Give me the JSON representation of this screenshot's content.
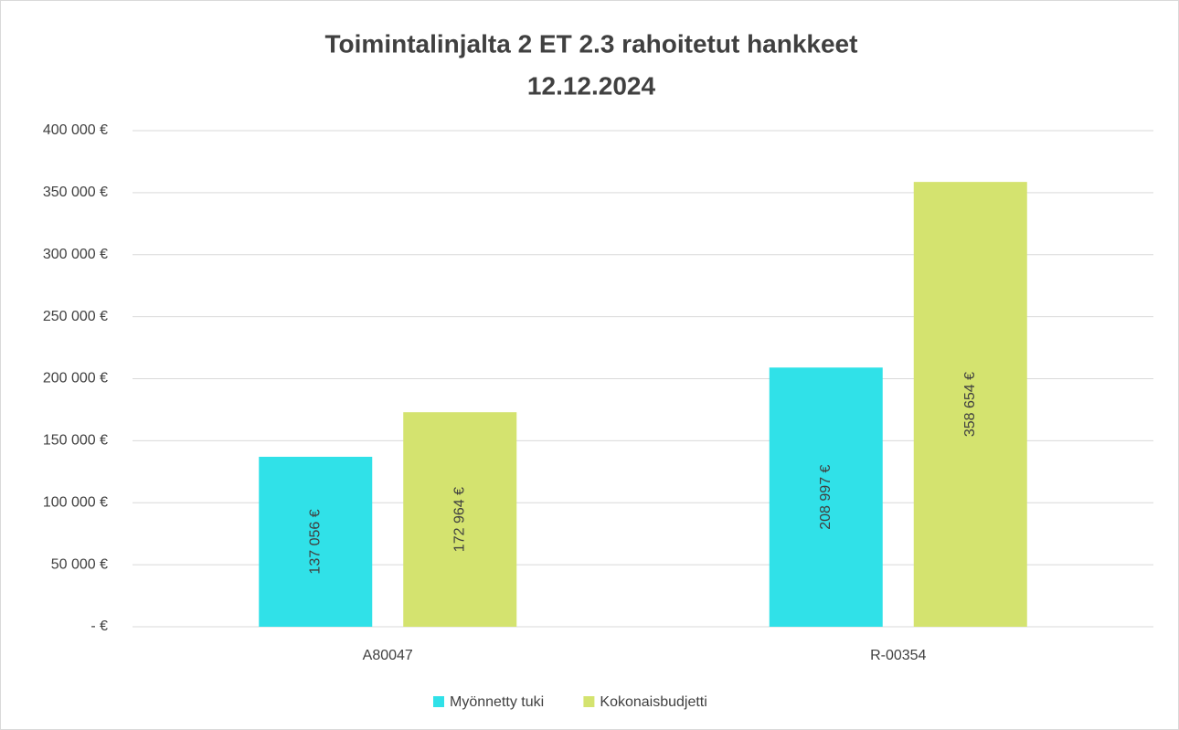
{
  "chart_data": {
    "type": "bar",
    "title": "Toimintalinjalta 2 ET 2.3 rahoitetut hankkeet",
    "subtitle": "12.12.2024",
    "categories": [
      "A80047",
      "R-00354"
    ],
    "series": [
      {
        "name": "Myönnetty tuki",
        "color": "#30e1e8",
        "values": [
          137056,
          208997
        ],
        "value_labels": [
          "137 056 €",
          "208 997 €"
        ]
      },
      {
        "name": "Kokonaisbudjetti",
        "color": "#d4e36f",
        "values": [
          172964,
          358654
        ],
        "value_labels": [
          "172 964 €",
          "358 654 €"
        ]
      }
    ],
    "ylim": [
      0,
      400000
    ],
    "yticks": [
      {
        "value": 0,
        "label": "-   €"
      },
      {
        "value": 50000,
        "label": "50 000 €"
      },
      {
        "value": 100000,
        "label": "100 000 €"
      },
      {
        "value": 150000,
        "label": "150 000 €"
      },
      {
        "value": 200000,
        "label": "200 000 €"
      },
      {
        "value": 250000,
        "label": "250 000 €"
      },
      {
        "value": 300000,
        "label": "300 000 €"
      },
      {
        "value": 350000,
        "label": "350 000 €"
      },
      {
        "value": 400000,
        "label": "400 000 €"
      }
    ],
    "grid": true,
    "legend": "bottom"
  }
}
